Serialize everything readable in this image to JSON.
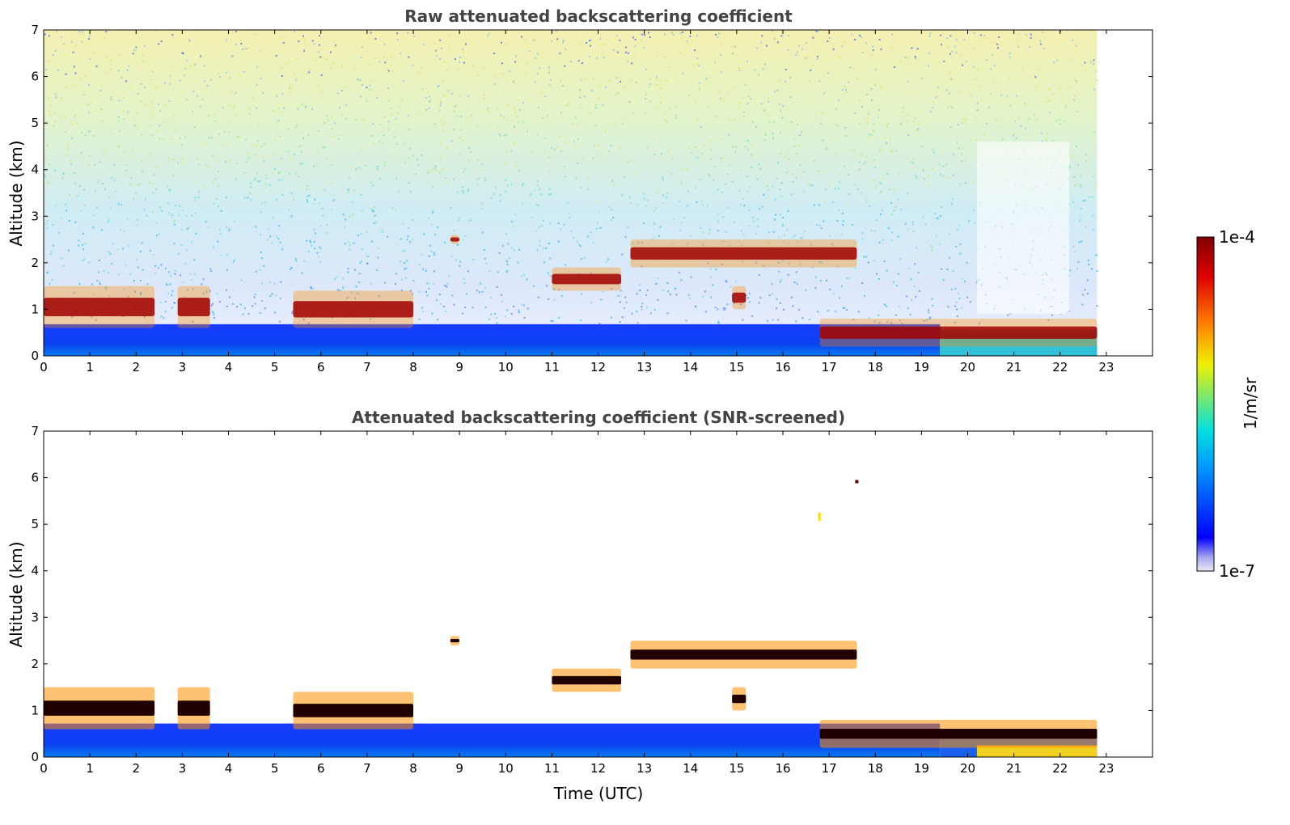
{
  "chart_data": [
    {
      "type": "heatmap",
      "title": "Raw attenuated backscattering coefficient",
      "xlabel": "",
      "ylabel": "Altitude (km)",
      "xlim": [
        0,
        24
      ],
      "ylim": [
        0,
        7
      ],
      "x_ticks": [
        "0",
        "1",
        "2",
        "3",
        "4",
        "5",
        "6",
        "7",
        "8",
        "9",
        "10",
        "11",
        "12",
        "13",
        "14",
        "15",
        "16",
        "17",
        "18",
        "19",
        "20",
        "21",
        "22",
        "23"
      ],
      "y_ticks": [
        "0",
        "1",
        "2",
        "3",
        "4",
        "5",
        "6",
        "7"
      ],
      "data_extent_hours": [
        0,
        22.8
      ],
      "grid": false,
      "features": [
        {
          "kind": "boundary_layer",
          "x": [
            0,
            22.8
          ],
          "y": [
            0,
            0.7
          ]
        },
        {
          "kind": "cloud_layer",
          "x": [
            0,
            2.4
          ],
          "y": [
            0.6,
            1.5
          ]
        },
        {
          "kind": "cloud_layer",
          "x": [
            2.9,
            3.6
          ],
          "y": [
            0.6,
            1.5
          ]
        },
        {
          "kind": "cloud_layer",
          "x": [
            5.4,
            8.0
          ],
          "y": [
            0.6,
            1.4
          ]
        },
        {
          "kind": "cloud_layer",
          "x": [
            8.8,
            9.0
          ],
          "y": [
            2.4,
            2.6
          ]
        },
        {
          "kind": "cloud_layer",
          "x": [
            11.0,
            12.5
          ],
          "y": [
            1.4,
            1.9
          ]
        },
        {
          "kind": "cloud_layer",
          "x": [
            12.7,
            17.6
          ],
          "y": [
            1.9,
            2.5
          ]
        },
        {
          "kind": "cloud_layer",
          "x": [
            14.9,
            15.2
          ],
          "y": [
            1.0,
            1.5
          ]
        },
        {
          "kind": "cloud_layer",
          "x": [
            16.8,
            22.8
          ],
          "y": [
            0.2,
            0.8
          ]
        }
      ]
    },
    {
      "type": "heatmap",
      "title": "Attenuated backscattering coefficient (SNR-screened)",
      "xlabel": "Time (UTC)",
      "ylabel": "Altitude (km)",
      "xlim": [
        0,
        24
      ],
      "ylim": [
        0,
        7
      ],
      "x_ticks": [
        "0",
        "1",
        "2",
        "3",
        "4",
        "5",
        "6",
        "7",
        "8",
        "9",
        "10",
        "11",
        "12",
        "13",
        "14",
        "15",
        "16",
        "17",
        "18",
        "19",
        "20",
        "21",
        "22",
        "23"
      ],
      "y_ticks": [
        "0",
        "1",
        "2",
        "3",
        "4",
        "5",
        "6",
        "7"
      ],
      "data_extent_hours": [
        0,
        22.8
      ],
      "grid": false
    }
  ],
  "colorbar": {
    "label": "1/m/sr",
    "max_label": "1e-4",
    "min_label": "1e-7",
    "scale": "log",
    "colors": [
      "#eaeaf6",
      "#a8a8f0",
      "#0000ff",
      "#0090ff",
      "#00e0e0",
      "#f0f000",
      "#ff8000",
      "#e00000",
      "#800000"
    ]
  }
}
